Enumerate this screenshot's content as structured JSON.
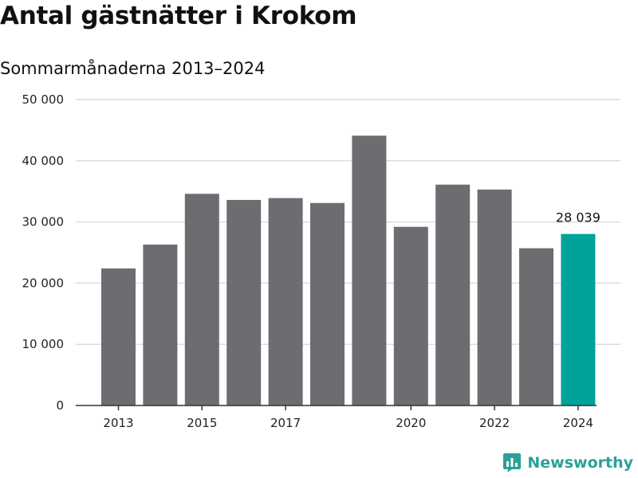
{
  "chart_data": {
    "type": "bar",
    "title": "Antal gästnätter i Krokom",
    "subtitle": "Sommarmånaderna 2013–2024",
    "categories": [
      "2013",
      "2014",
      "2015",
      "2016",
      "2017",
      "2018",
      "2019",
      "2020",
      "2021",
      "2022",
      "2023",
      "2024"
    ],
    "values": [
      22400,
      26300,
      34600,
      33600,
      33900,
      33100,
      44100,
      29200,
      36100,
      35300,
      25700,
      28039
    ],
    "x_tick_labels": [
      "2013",
      "2015",
      "2017",
      "2020",
      "2022",
      "2024"
    ],
    "y_ticks": [
      0,
      10000,
      20000,
      30000,
      40000,
      50000
    ],
    "y_tick_labels": [
      "0",
      "10 000",
      "20 000",
      "30 000",
      "40 000",
      "50 000"
    ],
    "ylim": [
      0,
      50000
    ],
    "xlabel": "",
    "ylabel": "",
    "grid": true,
    "highlight": {
      "category": "2024",
      "label": "28 039"
    },
    "colors": {
      "bar": "#6d6c71",
      "highlight": "#00a39a",
      "grid": "#dddddd",
      "axis": "#333333"
    }
  },
  "brand": {
    "name": "Newsworthy",
    "icon": "newsworthy-logo-icon",
    "color": "#2aa198"
  }
}
